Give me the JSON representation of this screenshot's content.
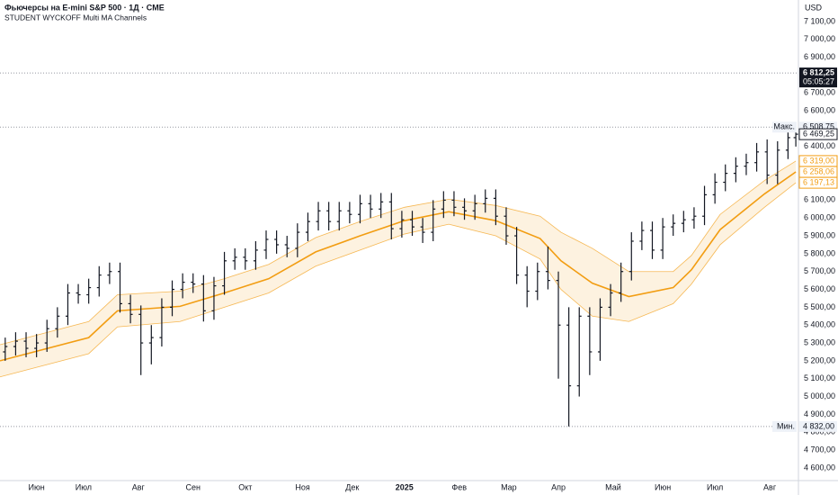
{
  "chart_data": {
    "type": "ohlc",
    "title": "Фьючерсы на E-mini S&P 500 · 1Д · CME",
    "subtitle": "STUDENT WYCKOFF Multi MA Channels",
    "currency": "USD",
    "color": "#131722",
    "x": [
      2,
      6,
      10,
      14,
      18,
      22,
      26,
      30,
      34,
      38,
      42,
      46,
      50,
      54,
      58,
      62,
      66,
      70,
      74,
      78,
      82,
      86,
      90,
      94,
      98,
      102,
      106,
      110,
      114,
      118,
      122,
      126,
      130,
      134,
      138,
      142,
      146,
      150,
      154,
      158,
      162,
      166,
      170,
      174,
      178,
      182,
      186,
      190,
      194,
      198,
      202,
      206,
      210,
      214,
      218,
      222,
      226,
      230,
      234,
      238,
      242,
      246,
      250,
      254,
      258,
      262,
      266,
      270,
      274,
      278,
      282,
      286,
      290,
      294,
      298,
      302,
      305
    ],
    "open": [
      5250,
      5280,
      5310,
      5270,
      5300,
      5380,
      5450,
      5580,
      5570,
      5610,
      5680,
      5700,
      5520,
      5460,
      5300,
      5330,
      5500,
      5600,
      5640,
      5630,
      5480,
      5620,
      5760,
      5780,
      5760,
      5820,
      5880,
      5850,
      5830,
      5920,
      5980,
      6040,
      5980,
      6040,
      6020,
      6080,
      6050,
      6090,
      5940,
      5990,
      5950,
      5920,
      6050,
      6100,
      6060,
      6040,
      6080,
      6110,
      6010,
      5900,
      5680,
      5590,
      5700,
      5650,
      5400,
      5060,
      5450,
      5250,
      5500,
      5580,
      5700,
      5870,
      5930,
      5820,
      5950,
      5970,
      5990,
      6010,
      6130,
      6200,
      6250,
      6290,
      6310,
      6370,
      6240,
      6380,
      6450
    ],
    "high": [
      5330,
      5360,
      5360,
      5350,
      5430,
      5500,
      5630,
      5630,
      5660,
      5730,
      5750,
      5750,
      5570,
      5510,
      5400,
      5550,
      5650,
      5690,
      5690,
      5680,
      5670,
      5810,
      5830,
      5830,
      5870,
      5930,
      5930,
      5900,
      5970,
      6030,
      6090,
      6090,
      6090,
      6090,
      6130,
      6130,
      6140,
      6140,
      6040,
      6040,
      6000,
      6100,
      6150,
      6150,
      6110,
      6130,
      6160,
      6160,
      6060,
      5950,
      5730,
      5750,
      5840,
      5700,
      5500,
      5500,
      5500,
      5550,
      5630,
      5750,
      5920,
      5980,
      5980,
      6000,
      6020,
      6040,
      6060,
      6180,
      6250,
      6300,
      6340,
      6360,
      6420,
      6440,
      6430,
      6500,
      6508.75
    ],
    "low": [
      5200,
      5230,
      5220,
      5220,
      5250,
      5330,
      5400,
      5520,
      5520,
      5560,
      5630,
      5470,
      5410,
      5120,
      5180,
      5280,
      5450,
      5550,
      5580,
      5420,
      5430,
      5570,
      5710,
      5710,
      5710,
      5770,
      5800,
      5780,
      5780,
      5870,
      5930,
      5930,
      5930,
      5970,
      5970,
      6000,
      6000,
      5880,
      5890,
      5900,
      5860,
      5870,
      6000,
      6010,
      5990,
      5990,
      6030,
      5960,
      5850,
      5630,
      5500,
      5540,
      5600,
      5100,
      4832,
      5000,
      5120,
      5200,
      5450,
      5530,
      5650,
      5820,
      5770,
      5770,
      5900,
      5920,
      5940,
      5960,
      6080,
      6150,
      6200,
      6240,
      6260,
      6190,
      6190,
      6330,
      6400
    ],
    "close": [
      5280,
      5310,
      5270,
      5300,
      5380,
      5450,
      5580,
      5570,
      5610,
      5680,
      5700,
      5520,
      5460,
      5300,
      5330,
      5500,
      5600,
      5640,
      5630,
      5480,
      5620,
      5760,
      5780,
      5760,
      5820,
      5880,
      5850,
      5830,
      5920,
      5980,
      6040,
      5980,
      6040,
      6020,
      6080,
      6050,
      6090,
      5940,
      5990,
      5950,
      5920,
      6050,
      6100,
      6060,
      6040,
      6080,
      6110,
      6010,
      5900,
      5680,
      5590,
      5700,
      5650,
      5400,
      5060,
      5450,
      5250,
      5500,
      5580,
      5700,
      5870,
      5930,
      5820,
      5950,
      5970,
      5990,
      6010,
      6130,
      6200,
      6250,
      6290,
      6310,
      6370,
      6240,
      6380,
      6450,
      6469.25
    ],
    "close_label": "6 469,25",
    "channel": {
      "color": "#f29d12",
      "x": [
        0,
        34,
        45,
        69,
        86,
        103,
        121,
        138,
        155,
        172,
        190,
        207,
        215,
        227,
        241,
        258,
        265,
        276,
        293,
        305
      ],
      "upper": [
        5290,
        5420,
        5570,
        5590,
        5660,
        5740,
        5890,
        5980,
        6060,
        6105,
        6070,
        6010,
        5920,
        5830,
        5700,
        5700,
        5790,
        6020,
        6210,
        6319
      ],
      "middle": [
        5200,
        5330,
        5480,
        5505,
        5580,
        5660,
        5810,
        5900,
        5985,
        6035,
        5985,
        5885,
        5760,
        5635,
        5560,
        5610,
        5710,
        5935,
        6135,
        6258.06
      ],
      "lower": [
        5110,
        5240,
        5390,
        5420,
        5500,
        5580,
        5730,
        5820,
        5910,
        5965,
        5900,
        5770,
        5600,
        5450,
        5420,
        5520,
        5630,
        5850,
        6060,
        6197.13
      ],
      "value_labels": [
        "6 319,00",
        "6 258,06",
        "6 197,13"
      ]
    },
    "max": {
      "label": "Макс.",
      "value": 6508.75,
      "value_label": "6 508,75"
    },
    "min": {
      "label": "Мин.",
      "value": 4832,
      "value_label": "4 832,00"
    },
    "last_price": {
      "value": 6812.25,
      "value_label": "6 812,25",
      "countdown": "05:05:27"
    },
    "xlim": [
      0,
      306
    ],
    "ylim": [
      4529,
      7221
    ],
    "xticks": [
      {
        "value": 14,
        "label": "Июн"
      },
      {
        "value": 32,
        "label": "Июл"
      },
      {
        "value": 53,
        "label": "Авг"
      },
      {
        "value": 74,
        "label": "Сен"
      },
      {
        "value": 94,
        "label": "Окт"
      },
      {
        "value": 116,
        "label": "Ноя"
      },
      {
        "value": 135,
        "label": "Дек"
      },
      {
        "value": 155,
        "label": "2025"
      },
      {
        "value": 176,
        "label": "Фев"
      },
      {
        "value": 195,
        "label": "Мар"
      },
      {
        "value": 214,
        "label": "Апр"
      },
      {
        "value": 235,
        "label": "Май"
      },
      {
        "value": 254,
        "label": "Июн"
      },
      {
        "value": 274,
        "label": "Июл"
      },
      {
        "value": 295,
        "label": "Авг"
      }
    ],
    "yticks": [
      {
        "value": 4600,
        "label": "4 600,00"
      },
      {
        "value": 4700,
        "label": "4 700,00"
      },
      {
        "value": 4800,
        "label": "4 800,00"
      },
      {
        "value": 4900,
        "label": "4 900,00"
      },
      {
        "value": 5000,
        "label": "5 000,00"
      },
      {
        "value": 5100,
        "label": "5 100,00"
      },
      {
        "value": 5200,
        "label": "5 200,00"
      },
      {
        "value": 5300,
        "label": "5 300,00"
      },
      {
        "value": 5400,
        "label": "5 400,00"
      },
      {
        "value": 5500,
        "label": "5 500,00"
      },
      {
        "value": 5600,
        "label": "5 600,00"
      },
      {
        "value": 5700,
        "label": "5 700,00"
      },
      {
        "value": 5800,
        "label": "5 800,00"
      },
      {
        "value": 5900,
        "label": "5 900,00"
      },
      {
        "value": 6000,
        "label": "6 000,00"
      },
      {
        "value": 6100,
        "label": "6 100,00"
      },
      {
        "value": 6400,
        "label": "6 400,00"
      },
      {
        "value": 6600,
        "label": "6 600,00"
      },
      {
        "value": 6700,
        "label": "6 700,00"
      },
      {
        "value": 6900,
        "label": "6 900,00"
      },
      {
        "value": 7000,
        "label": "7 000,00"
      },
      {
        "value": 7100,
        "label": "7 100,00"
      }
    ]
  }
}
